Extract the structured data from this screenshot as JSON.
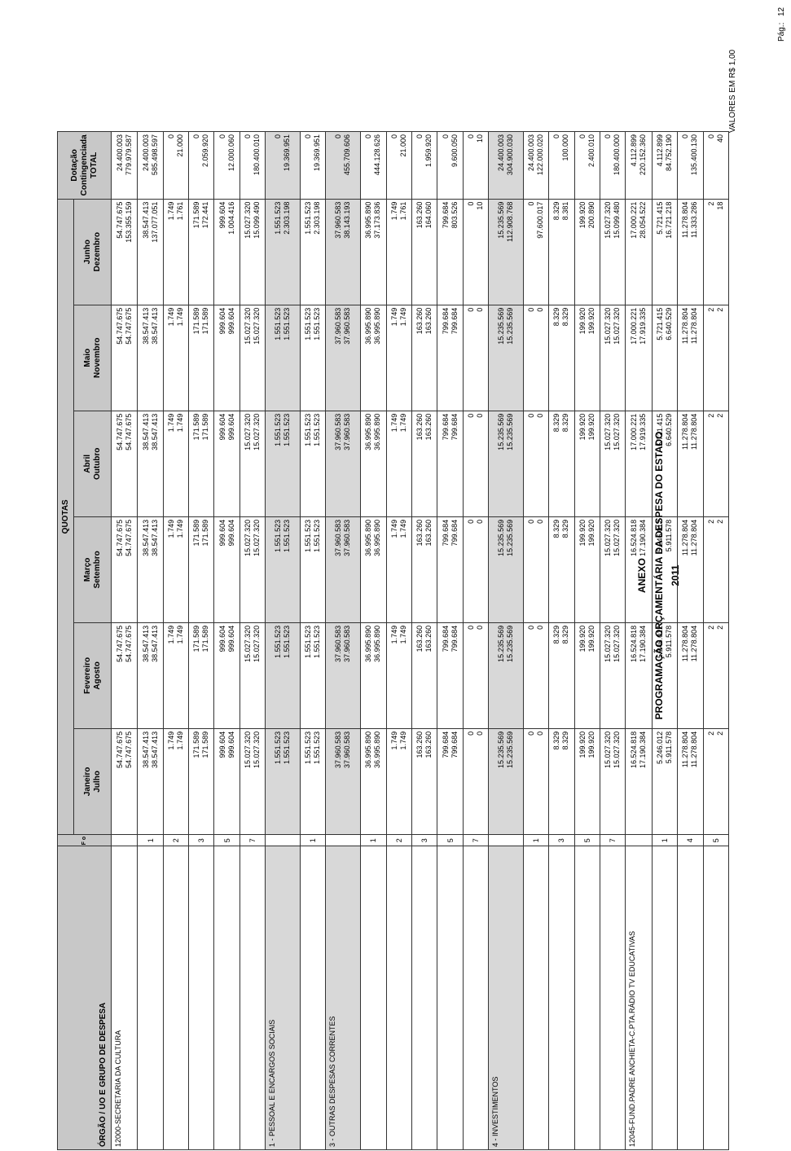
{
  "header": {
    "anexo": "ANEXO",
    "title": "PROGRAMAÇÃO ORÇAMENTÁRIA DA DESPESA DO ESTADO",
    "year": "2011",
    "page_label": "Pág.:",
    "page_number": "12",
    "valores": "VALORES EM R$ 1,00"
  },
  "columns": {
    "orgao": "ÓRGÃO / UO  E GRUPO DE DESPESA",
    "fonte": "F o n t e",
    "quotas": "QUOTAS",
    "months": [
      {
        "top": "Janeiro",
        "bottom": "Julho"
      },
      {
        "top": "Fevereiro",
        "bottom": "Agosto"
      },
      {
        "top": "Março",
        "bottom": "Setembro"
      },
      {
        "top": "Abril",
        "bottom": "Outubro"
      },
      {
        "top": "Maio",
        "bottom": "Novembro"
      },
      {
        "top": "Junho",
        "bottom": "Dezembro"
      }
    ],
    "dotacao_1": "Dotação",
    "dotacao_2": "Contingenciada",
    "dotacao_3": "TOTAL"
  },
  "rows": [
    {
      "type": "org",
      "label": "12000-SECRETARIA DA CULTURA",
      "fonte": "",
      "vals": [
        [
          "54.747.675",
          "54.747.675"
        ],
        [
          "54.747.675",
          "54.747.675"
        ],
        [
          "54.747.675",
          "54.747.675"
        ],
        [
          "54.747.675",
          "54.747.675"
        ],
        [
          "54.747.675",
          "54.747.675"
        ],
        [
          "54.747.675",
          "153.355.159"
        ],
        [
          "24.400.003",
          "779.979.587"
        ]
      ]
    },
    {
      "type": "src",
      "label": "",
      "fonte": "1",
      "vals": [
        [
          "38.547.413",
          "38.547.413"
        ],
        [
          "38.547.413",
          "38.547.413"
        ],
        [
          "38.547.413",
          "38.547.413"
        ],
        [
          "38.547.413",
          "38.547.413"
        ],
        [
          "38.547.413",
          "38.547.413"
        ],
        [
          "38.547.413",
          "137.077.051"
        ],
        [
          "24.400.003",
          "585.498.597"
        ]
      ]
    },
    {
      "type": "src",
      "label": "",
      "fonte": "2",
      "vals": [
        [
          "1.749",
          "1.749"
        ],
        [
          "1.749",
          "1.749"
        ],
        [
          "1.749",
          "1.749"
        ],
        [
          "1.749",
          "1.749"
        ],
        [
          "1.749",
          "1.749"
        ],
        [
          "1.749",
          "1.761"
        ],
        [
          "0",
          "21.000"
        ]
      ]
    },
    {
      "type": "src",
      "label": "",
      "fonte": "3",
      "vals": [
        [
          "171.589",
          "171.589"
        ],
        [
          "171.589",
          "171.589"
        ],
        [
          "171.589",
          "171.589"
        ],
        [
          "171.589",
          "171.589"
        ],
        [
          "171.589",
          "171.589"
        ],
        [
          "171.589",
          "172.441"
        ],
        [
          "0",
          "2.059.920"
        ]
      ]
    },
    {
      "type": "src",
      "label": "",
      "fonte": "5",
      "vals": [
        [
          "999.604",
          "999.604"
        ],
        [
          "999.604",
          "999.604"
        ],
        [
          "999.604",
          "999.604"
        ],
        [
          "999.604",
          "999.604"
        ],
        [
          "999.604",
          "999.604"
        ],
        [
          "999.604",
          "1.004.416"
        ],
        [
          "0",
          "12.000.060"
        ]
      ]
    },
    {
      "type": "src",
      "label": "",
      "fonte": "7",
      "vals": [
        [
          "15.027.320",
          "15.027.320"
        ],
        [
          "15.027.320",
          "15.027.320"
        ],
        [
          "15.027.320",
          "15.027.320"
        ],
        [
          "15.027.320",
          "15.027.320"
        ],
        [
          "15.027.320",
          "15.027.320"
        ],
        [
          "15.027.320",
          "15.099.490"
        ],
        [
          "0",
          "180.400.010"
        ]
      ]
    },
    {
      "type": "grp",
      "label": "1 - PESSOAL E ENCARGOS SOCIAIS",
      "fonte": "",
      "vals": [
        [
          "1.551.523",
          "1.551.523"
        ],
        [
          "1.551.523",
          "1.551.523"
        ],
        [
          "1.551.523",
          "1.551.523"
        ],
        [
          "1.551.523",
          "1.551.523"
        ],
        [
          "1.551.523",
          "1.551.523"
        ],
        [
          "1.551.523",
          "2.303.198"
        ],
        [
          "0",
          "19.369.951"
        ]
      ]
    },
    {
      "type": "src",
      "label": "",
      "fonte": "1",
      "vals": [
        [
          "1.551.523",
          "1.551.523"
        ],
        [
          "1.551.523",
          "1.551.523"
        ],
        [
          "1.551.523",
          "1.551.523"
        ],
        [
          "1.551.523",
          "1.551.523"
        ],
        [
          "1.551.523",
          "1.551.523"
        ],
        [
          "1.551.523",
          "2.303.198"
        ],
        [
          "0",
          "19.369.951"
        ]
      ]
    },
    {
      "type": "grp",
      "label": "3 - OUTRAS DESPESAS CORRENTES",
      "fonte": "",
      "vals": [
        [
          "37.960.583",
          "37.960.583"
        ],
        [
          "37.960.583",
          "37.960.583"
        ],
        [
          "37.960.583",
          "37.960.583"
        ],
        [
          "37.960.583",
          "37.960.583"
        ],
        [
          "37.960.583",
          "37.960.583"
        ],
        [
          "37.960.583",
          "38.143.193"
        ],
        [
          "0",
          "455.709.606"
        ]
      ]
    },
    {
      "type": "src",
      "label": "",
      "fonte": "1",
      "vals": [
        [
          "36.995.890",
          "36.995.890"
        ],
        [
          "36.995.890",
          "36.995.890"
        ],
        [
          "36.995.890",
          "36.995.890"
        ],
        [
          "36.995.890",
          "36.995.890"
        ],
        [
          "36.995.890",
          "36.995.890"
        ],
        [
          "36.995.890",
          "37.173.836"
        ],
        [
          "0",
          "444.128.626"
        ]
      ]
    },
    {
      "type": "src",
      "label": "",
      "fonte": "2",
      "vals": [
        [
          "1.749",
          "1.749"
        ],
        [
          "1.749",
          "1.749"
        ],
        [
          "1.749",
          "1.749"
        ],
        [
          "1.749",
          "1.749"
        ],
        [
          "1.749",
          "1.749"
        ],
        [
          "1.749",
          "1.761"
        ],
        [
          "0",
          "21.000"
        ]
      ]
    },
    {
      "type": "src",
      "label": "",
      "fonte": "3",
      "vals": [
        [
          "163.260",
          "163.260"
        ],
        [
          "163.260",
          "163.260"
        ],
        [
          "163.260",
          "163.260"
        ],
        [
          "163.260",
          "163.260"
        ],
        [
          "163.260",
          "163.260"
        ],
        [
          "163.260",
          "164.060"
        ],
        [
          "0",
          "1.959.920"
        ]
      ]
    },
    {
      "type": "src",
      "label": "",
      "fonte": "5",
      "vals": [
        [
          "799.684",
          "799.684"
        ],
        [
          "799.684",
          "799.684"
        ],
        [
          "799.684",
          "799.684"
        ],
        [
          "799.684",
          "799.684"
        ],
        [
          "799.684",
          "799.684"
        ],
        [
          "799.684",
          "803.526"
        ],
        [
          "0",
          "9.600.050"
        ]
      ]
    },
    {
      "type": "src",
      "label": "",
      "fonte": "7",
      "vals": [
        [
          "0",
          "0"
        ],
        [
          "0",
          "0"
        ],
        [
          "0",
          "0"
        ],
        [
          "0",
          "0"
        ],
        [
          "0",
          "0"
        ],
        [
          "0",
          "10"
        ],
        [
          "0",
          "10"
        ]
      ]
    },
    {
      "type": "grp",
      "label": "4 - INVESTIMENTOS",
      "fonte": "",
      "vals": [
        [
          "15.235.569",
          "15.235.569"
        ],
        [
          "15.235.569",
          "15.235.569"
        ],
        [
          "15.235.569",
          "15.235.569"
        ],
        [
          "15.235.569",
          "15.235.569"
        ],
        [
          "15.235.569",
          "15.235.569"
        ],
        [
          "15.235.569",
          "112.908.768"
        ],
        [
          "24.400.003",
          "304.900.030"
        ]
      ]
    },
    {
      "type": "src",
      "label": "",
      "fonte": "1",
      "vals": [
        [
          "0",
          "0"
        ],
        [
          "0",
          "0"
        ],
        [
          "0",
          "0"
        ],
        [
          "0",
          "0"
        ],
        [
          "0",
          "0"
        ],
        [
          "0",
          "97.600.017"
        ],
        [
          "24.400.003",
          "122.000.020"
        ]
      ]
    },
    {
      "type": "src",
      "label": "",
      "fonte": "3",
      "vals": [
        [
          "8.329",
          "8.329"
        ],
        [
          "8.329",
          "8.329"
        ],
        [
          "8.329",
          "8.329"
        ],
        [
          "8.329",
          "8.329"
        ],
        [
          "8.329",
          "8.329"
        ],
        [
          "8.329",
          "8.381"
        ],
        [
          "0",
          "100.000"
        ]
      ]
    },
    {
      "type": "src",
      "label": "",
      "fonte": "5",
      "vals": [
        [
          "199.920",
          "199.920"
        ],
        [
          "199.920",
          "199.920"
        ],
        [
          "199.920",
          "199.920"
        ],
        [
          "199.920",
          "199.920"
        ],
        [
          "199.920",
          "199.920"
        ],
        [
          "199.920",
          "200.890"
        ],
        [
          "0",
          "2.400.010"
        ]
      ]
    },
    {
      "type": "src",
      "label": "",
      "fonte": "7",
      "vals": [
        [
          "15.027.320",
          "15.027.320"
        ],
        [
          "15.027.320",
          "15.027.320"
        ],
        [
          "15.027.320",
          "15.027.320"
        ],
        [
          "15.027.320",
          "15.027.320"
        ],
        [
          "15.027.320",
          "15.027.320"
        ],
        [
          "15.027.320",
          "15.099.480"
        ],
        [
          "0",
          "180.400.000"
        ]
      ]
    },
    {
      "type": "org",
      "label": "12045-FUND.PADRE ANCHIETA-C.PTA.RÁDIO TV EDUCATIVAS",
      "fonte": "",
      "vals": [
        [
          "16.524.818",
          "17.190.384"
        ],
        [
          "16.524.818",
          "17.190.384"
        ],
        [
          "16.524.818",
          "17.190.384"
        ],
        [
          "17.000.221",
          "17.919.335"
        ],
        [
          "17.000.221",
          "17.919.335"
        ],
        [
          "17.000.221",
          "28.054.522"
        ],
        [
          "4.112.899",
          "220.152.360"
        ]
      ]
    },
    {
      "type": "src",
      "label": "",
      "fonte": "1",
      "vals": [
        [
          "5.246.012",
          "5.911.578"
        ],
        [
          "5.246.012",
          "5.911.578"
        ],
        [
          "5.246.012",
          "5.911.578"
        ],
        [
          "5.721.415",
          "6.640.529"
        ],
        [
          "5.721.415",
          "6.640.529"
        ],
        [
          "5.721.415",
          "16.721.218"
        ],
        [
          "4.112.899",
          "84.752.190"
        ]
      ]
    },
    {
      "type": "src",
      "label": "",
      "fonte": "4",
      "vals": [
        [
          "11.278.804",
          "11.278.804"
        ],
        [
          "11.278.804",
          "11.278.804"
        ],
        [
          "11.278.804",
          "11.278.804"
        ],
        [
          "11.278.804",
          "11.278.804"
        ],
        [
          "11.278.804",
          "11.278.804"
        ],
        [
          "11.278.804",
          "11.333.286"
        ],
        [
          "0",
          "135.400.130"
        ]
      ]
    },
    {
      "type": "src",
      "label": "",
      "fonte": "5",
      "vals": [
        [
          "2",
          "2"
        ],
        [
          "2",
          "2"
        ],
        [
          "2",
          "2"
        ],
        [
          "2",
          "2"
        ],
        [
          "2",
          "2"
        ],
        [
          "2",
          "18"
        ],
        [
          "0",
          "40"
        ]
      ]
    }
  ]
}
